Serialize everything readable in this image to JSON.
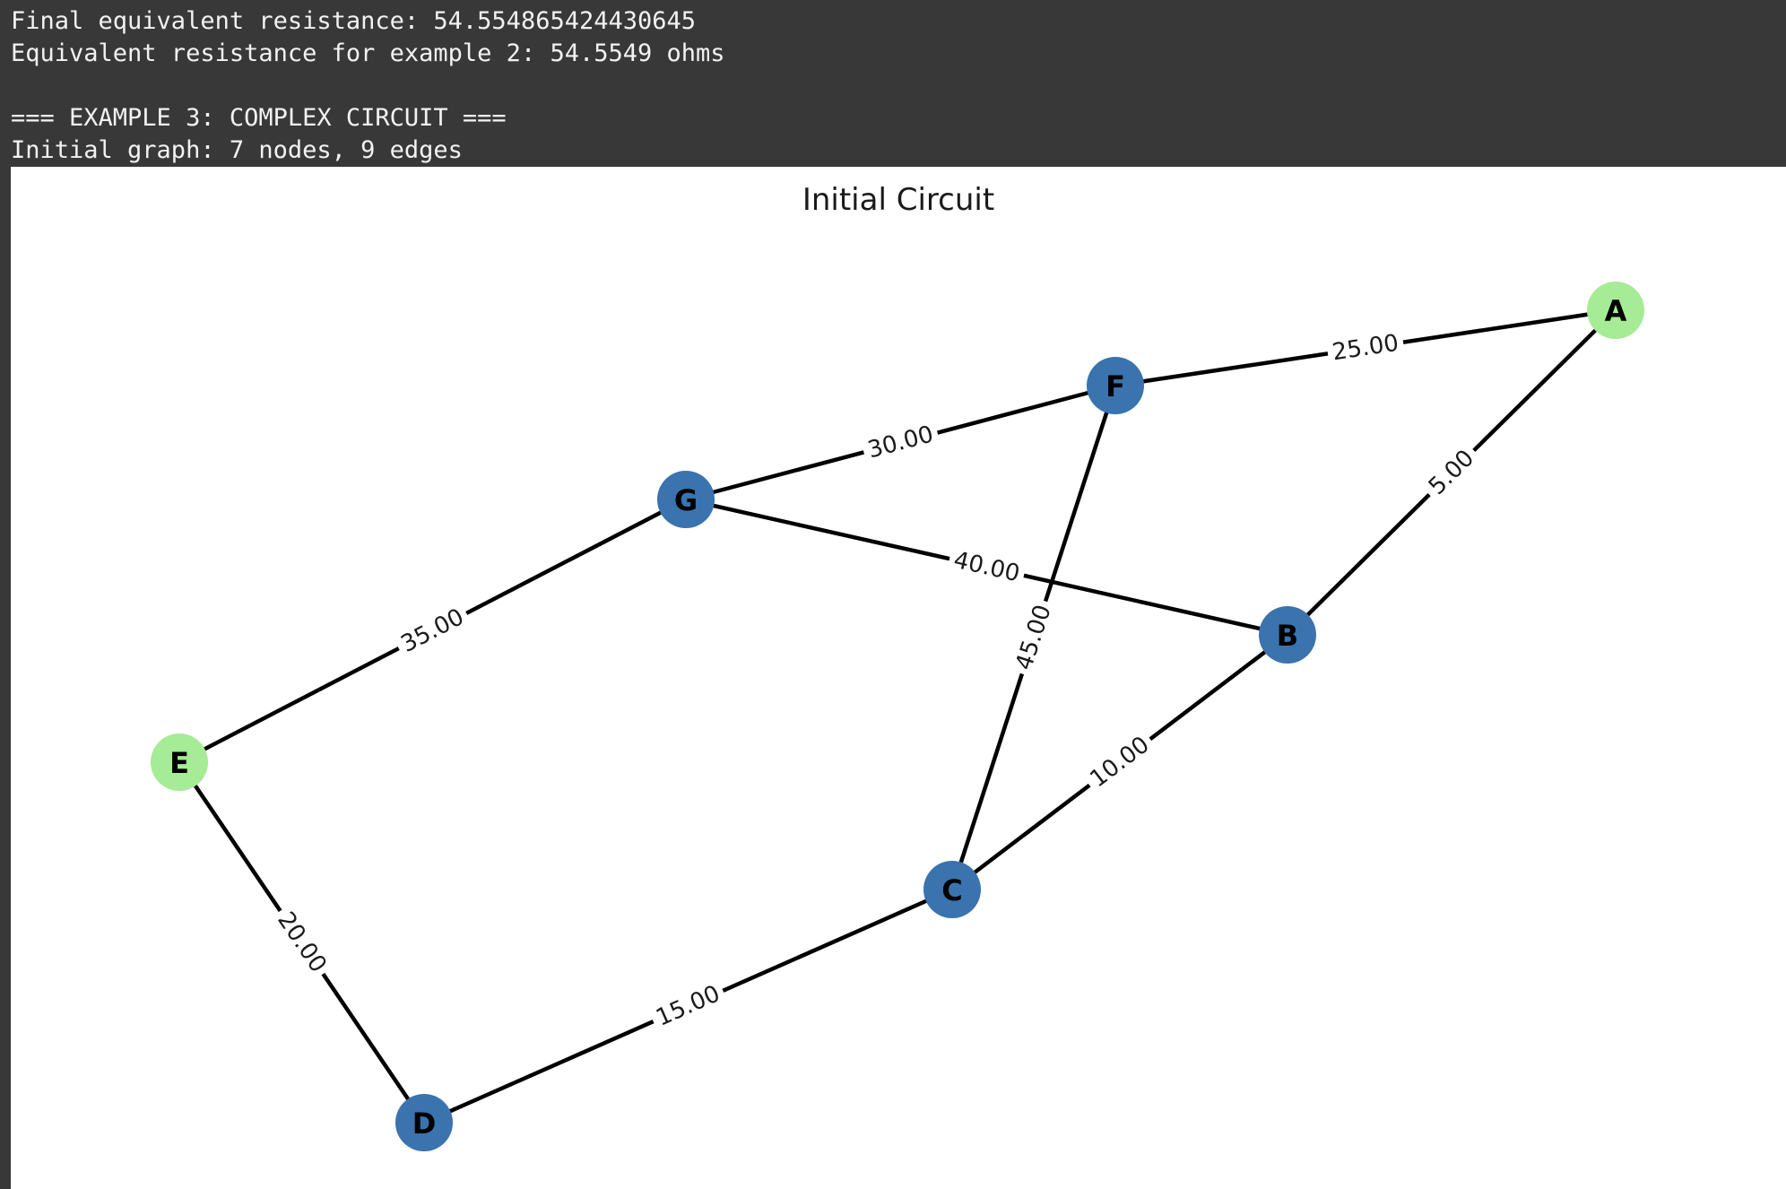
{
  "console": {
    "lines": [
      "Final equivalent resistance: 54.554865424430645",
      "Equivalent resistance for example 2: 54.5549 ohms",
      "",
      "=== EXAMPLE 3: COMPLEX CIRCUIT ===",
      "Initial graph: 7 nodes, 9 edges"
    ]
  },
  "figure": {
    "title": "Initial Circuit"
  },
  "colors": {
    "terminal_node": "#a6eb96",
    "internal_node": "#3a73ad",
    "edge": "#000000",
    "console_bg": "#383838",
    "console_text": "#f2f2f2"
  },
  "graph": {
    "nodes": [
      {
        "id": "A",
        "type": "terminal"
      },
      {
        "id": "B",
        "type": "internal"
      },
      {
        "id": "C",
        "type": "internal"
      },
      {
        "id": "D",
        "type": "internal"
      },
      {
        "id": "E",
        "type": "terminal"
      },
      {
        "id": "F",
        "type": "internal"
      },
      {
        "id": "G",
        "type": "internal"
      }
    ],
    "edges": [
      {
        "from": "F",
        "to": "A",
        "label": "25.00"
      },
      {
        "from": "B",
        "to": "A",
        "label": "5.00"
      },
      {
        "from": "G",
        "to": "F",
        "label": "30.00"
      },
      {
        "from": "G",
        "to": "B",
        "label": "40.00"
      },
      {
        "from": "F",
        "to": "C",
        "label": "45.00"
      },
      {
        "from": "C",
        "to": "B",
        "label": "10.00"
      },
      {
        "from": "E",
        "to": "G",
        "label": "35.00"
      },
      {
        "from": "E",
        "to": "D",
        "label": "20.00"
      },
      {
        "from": "D",
        "to": "C",
        "label": "15.00"
      }
    ]
  }
}
